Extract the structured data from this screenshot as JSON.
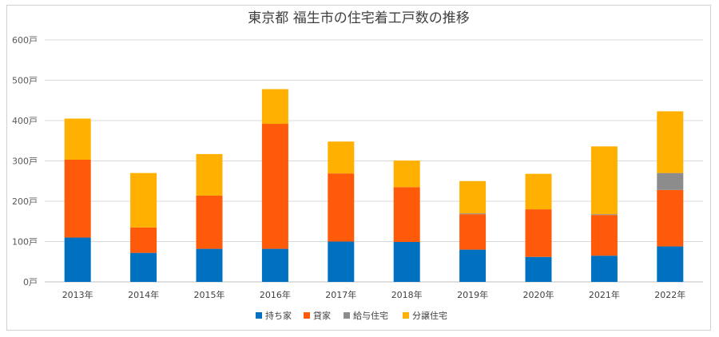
{
  "chart_data": {
    "type": "bar",
    "stacked": true,
    "title": "東京都 福生市の住宅着工戸数の推移",
    "xlabel": "",
    "ylabel": "",
    "ylim": [
      0,
      600
    ],
    "yticks": [
      0,
      100,
      200,
      300,
      400,
      500,
      600
    ],
    "ytick_labels": [
      "0戸",
      "100戸",
      "200戸",
      "300戸",
      "400戸",
      "500戸",
      "600戸"
    ],
    "grid": true,
    "legend_position": "bottom",
    "categories": [
      "2013年",
      "2014年",
      "2015年",
      "2016年",
      "2017年",
      "2018年",
      "2019年",
      "2020年",
      "2021年",
      "2022年"
    ],
    "series": [
      {
        "name": "持ち家",
        "color": "#0070c0",
        "values": [
          110,
          72,
          82,
          82,
          100,
          99,
          80,
          62,
          65,
          88
        ]
      },
      {
        "name": "貸家",
        "color": "#ff5a0a",
        "values": [
          193,
          63,
          132,
          310,
          169,
          136,
          88,
          118,
          101,
          140
        ]
      },
      {
        "name": "給与住宅",
        "color": "#8c8c8c",
        "values": [
          0,
          0,
          0,
          0,
          0,
          0,
          2,
          0,
          2,
          42
        ]
      },
      {
        "name": "分譲住宅",
        "color": "#ffb000",
        "values": [
          102,
          135,
          103,
          86,
          79,
          66,
          80,
          88,
          168,
          153
        ]
      }
    ]
  }
}
